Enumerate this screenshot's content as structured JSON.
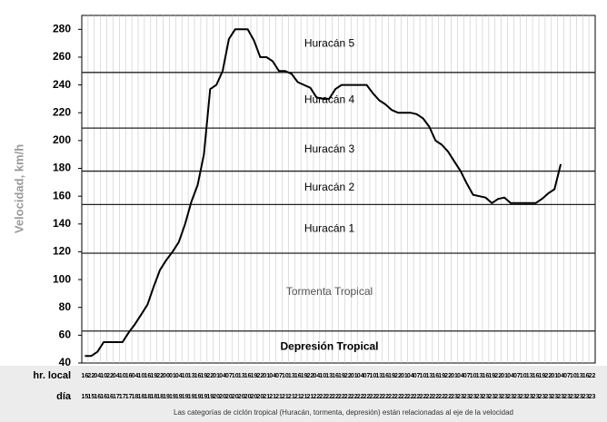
{
  "chart_data": {
    "type": "line",
    "y_label": "Velocidad, km/h",
    "hour_row_label": "hr. local",
    "day_row_label": "día",
    "note": "Las categorías de ciclón tropical (Huracán, tormenta, depresión) están relacionadas al eje de la velocidad",
    "categories": [
      "16",
      "22",
      "04",
      "10",
      "22",
      "04",
      "10",
      "16",
      "04",
      "10",
      "16",
      "19",
      "22",
      "00",
      "01",
      "04",
      "10",
      "13",
      "16",
      "19",
      "22",
      "01",
      "04",
      "07",
      "10",
      "13",
      "16",
      "19",
      "22",
      "01",
      "04",
      "07",
      "10",
      "13",
      "16",
      "19",
      "22",
      "04",
      "10",
      "13",
      "16",
      "19",
      "22",
      "01",
      "04",
      "07",
      "10",
      "13",
      "16",
      "19",
      "22",
      "01",
      "04",
      "07",
      "10",
      "13",
      "16",
      "19",
      "22",
      "01",
      "04",
      "07",
      "10",
      "13",
      "16",
      "19",
      "22",
      "01",
      "04",
      "07",
      "10",
      "13",
      "16",
      "19",
      "22",
      "01",
      "04",
      "07",
      "10",
      "13",
      "16",
      "22"
    ],
    "days": [
      "15",
      "15",
      "16",
      "16",
      "16",
      "17",
      "17",
      "17",
      "18",
      "18",
      "18",
      "18",
      "18",
      "19",
      "19",
      "19",
      "19",
      "19",
      "19",
      "19",
      "19",
      "20",
      "20",
      "20",
      "20",
      "20",
      "20",
      "20",
      "20",
      "21",
      "21",
      "21",
      "21",
      "21",
      "21",
      "21",
      "21",
      "22",
      "22",
      "22",
      "22",
      "22",
      "22",
      "22",
      "22",
      "22",
      "22",
      "22",
      "22",
      "22",
      "22",
      "22",
      "22",
      "22",
      "22",
      "22",
      "22",
      "22",
      "22",
      "23",
      "23",
      "23",
      "23",
      "23",
      "23",
      "23",
      "23",
      "23",
      "23",
      "23",
      "23",
      "23",
      "23",
      "23",
      "23",
      "23",
      "23",
      "23",
      "23",
      "23",
      "23",
      "23"
    ],
    "values": [
      45,
      45,
      48,
      55,
      55,
      55,
      55,
      62,
      68,
      75,
      82,
      95,
      107,
      114,
      120,
      127,
      140,
      156,
      168,
      190,
      237,
      240,
      250,
      273,
      280,
      280,
      280,
      272,
      260,
      260,
      257,
      250,
      250,
      248,
      242,
      240,
      238,
      231,
      230,
      230,
      237,
      240,
      240,
      240,
      240,
      240,
      234,
      229,
      226,
      222,
      220,
      220,
      220,
      219,
      216,
      210,
      200,
      197,
      192,
      185,
      178,
      169,
      161,
      160,
      159,
      155,
      158,
      159,
      155,
      155,
      155,
      155,
      155,
      158,
      162,
      165,
      183,
      null,
      null,
      null,
      null,
      null
    ],
    "color": "#000000",
    "ylim": [
      40,
      290
    ],
    "yticks": [
      40,
      60,
      80,
      100,
      120,
      140,
      160,
      180,
      200,
      220,
      240,
      260,
      280
    ],
    "thresholds": [
      63,
      119,
      154,
      178,
      209,
      249
    ],
    "bands": [
      "Depresión Tropical",
      "Tormenta Tropical",
      "Huracán 1",
      "Huracán 2",
      "Huracán 3",
      "Huracán 4",
      "Huracán 5"
    ]
  }
}
